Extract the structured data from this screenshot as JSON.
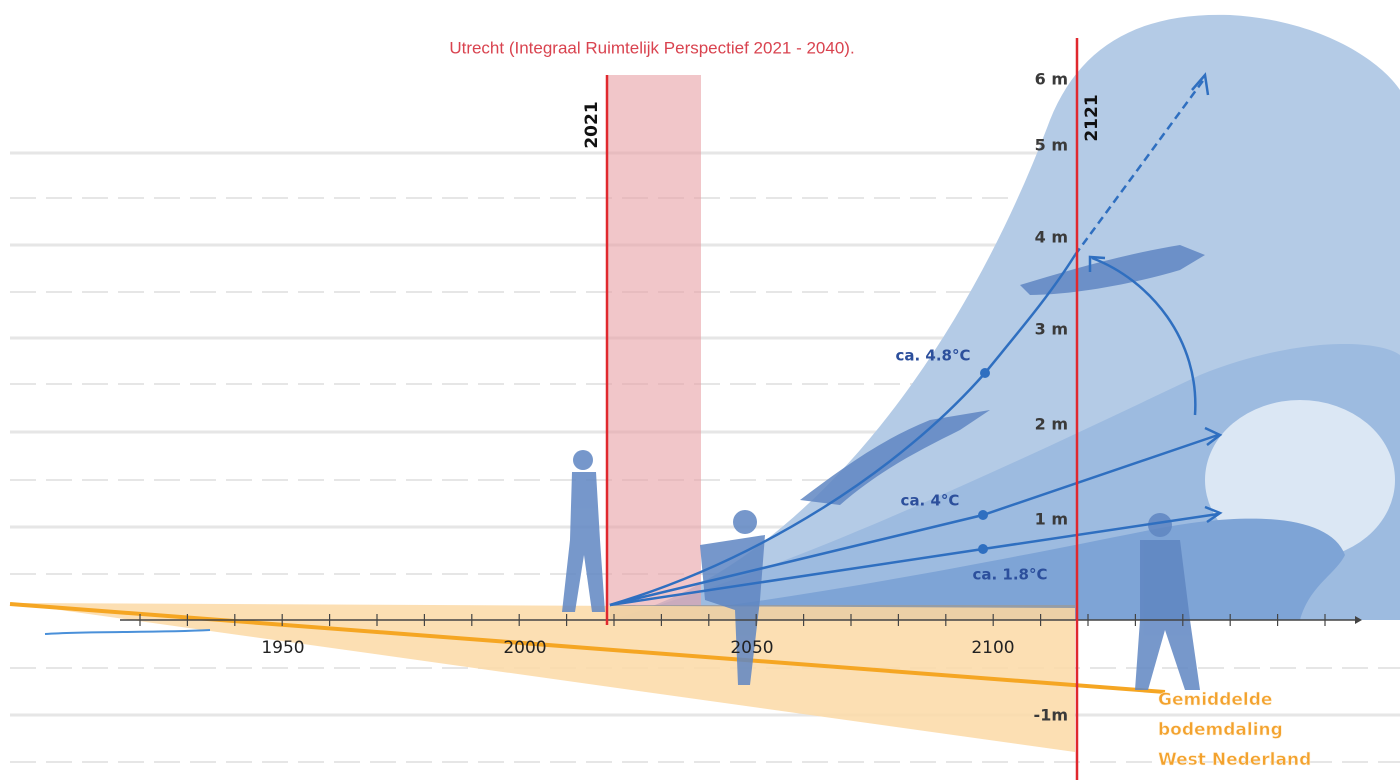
{
  "caption": "Utrecht (Integraal Ruimtelijk Perspectief 2021 - 2040).",
  "markers": {
    "start": "2021",
    "end": "2121"
  },
  "levels": [
    "6 m",
    "5 m",
    "4 m",
    "3 m",
    "2 m",
    "1 m",
    "-1m"
  ],
  "years": [
    "1950",
    "2000",
    "2050",
    "2100"
  ],
  "scenarios": [
    "ca. 4.8°C",
    "ca. 4°C",
    "ca. 1.8°C"
  ],
  "legend": [
    "Gemiddelde",
    "bodemdaling",
    "West Nederland"
  ]
}
